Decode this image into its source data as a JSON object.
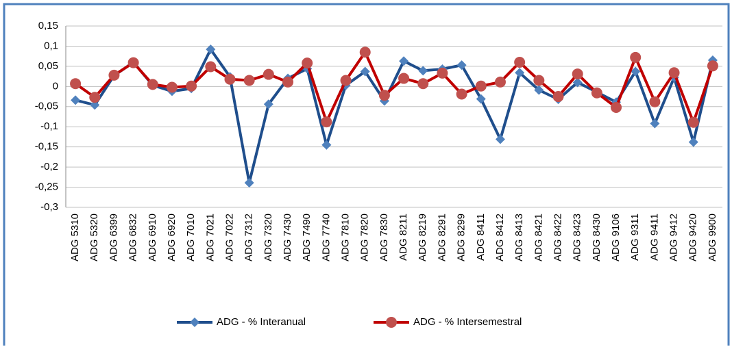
{
  "chart_data": {
    "type": "line",
    "categories": [
      "ADG 5310",
      "ADG 5320",
      "ADG 6399",
      "ADG 6832",
      "ADG 6910",
      "ADG 6920",
      "ADG 7010",
      "ADG 7021",
      "ADG 7022",
      "ADG 7312",
      "ADG 7320",
      "ADG 7430",
      "ADG 7490",
      "ADG 7740",
      "ADG 7810",
      "ADG 7820",
      "ADG 7830",
      "ADG 8211",
      "ADG 8219",
      "ADG 8291",
      "ADG 8299",
      "ADG 8411",
      "ADG 8412",
      "ADG 8413",
      "ADG 8421",
      "ADG 8422",
      "ADG 8423",
      "ADG 8430",
      "ADG 9106",
      "ADG 9311",
      "ADG 9411",
      "ADG 9412",
      "ADG 9420",
      "ADG 9900"
    ],
    "series": [
      {
        "name": "ADG - % Interanual",
        "color": "#1f4e8c",
        "marker": "diamond",
        "marker_color": "#4f81bd",
        "values": [
          -0.034,
          -0.046,
          0.027,
          0.06,
          0.003,
          -0.012,
          -0.005,
          0.092,
          0.024,
          -0.239,
          -0.044,
          0.02,
          0.044,
          -0.145,
          0.003,
          0.037,
          -0.036,
          0.063,
          0.039,
          0.043,
          0.053,
          -0.031,
          -0.131,
          0.034,
          -0.009,
          -0.032,
          0.01,
          -0.014,
          -0.039,
          0.037,
          -0.092,
          0.022,
          -0.138,
          0.065
        ]
      },
      {
        "name": "ADG - % Intersemestral",
        "color": "#c00000",
        "marker": "circle",
        "marker_color": "#c0504d",
        "values": [
          0.007,
          -0.027,
          0.028,
          0.059,
          0.005,
          -0.002,
          0.001,
          0.049,
          0.018,
          0.015,
          0.03,
          0.011,
          0.058,
          -0.088,
          0.015,
          0.085,
          -0.022,
          0.02,
          0.007,
          0.033,
          -0.019,
          0.001,
          0.011,
          0.06,
          0.015,
          -0.025,
          0.031,
          -0.016,
          -0.052,
          0.072,
          -0.038,
          0.034,
          -0.089,
          0.051
        ]
      }
    ],
    "ylim": [
      -0.3,
      0.15
    ],
    "yticks": [
      {
        "value": 0.15,
        "label": "0,15"
      },
      {
        "value": 0.1,
        "label": "0,1"
      },
      {
        "value": 0.05,
        "label": "0,05"
      },
      0,
      {
        "value": -0.05,
        "label": "-0,05"
      },
      {
        "value": -0.1,
        "label": "-0,1"
      },
      {
        "value": -0.15,
        "label": "-0,15"
      },
      {
        "value": -0.2,
        "label": "-0,2"
      },
      {
        "value": -0.25,
        "label": "-0,25"
      },
      {
        "value": -0.3,
        "label": "-0,3"
      }
    ],
    "grid": true,
    "legend": "bottom"
  }
}
